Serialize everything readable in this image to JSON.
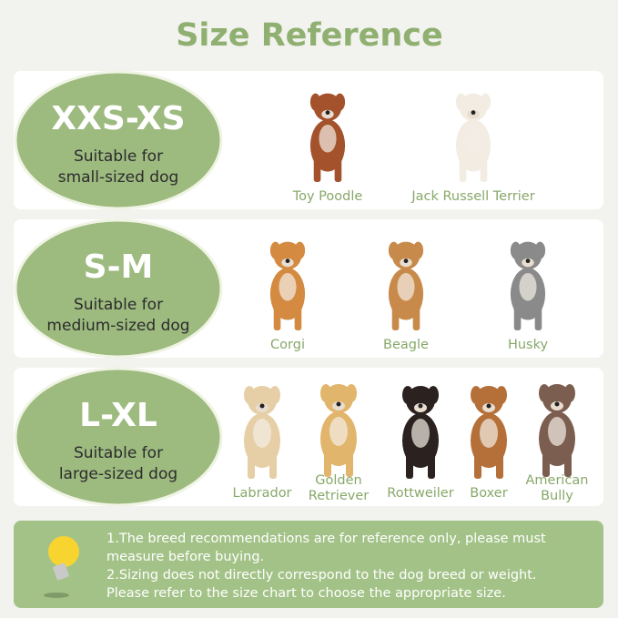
{
  "header": {
    "title": "Size Reference"
  },
  "rows": [
    {
      "size": "XXS-XS",
      "desc": [
        "Suitable for",
        "small-sized dog"
      ],
      "dogs": [
        {
          "label": [
            "Toy Poodle"
          ]
        },
        {
          "label": [
            "Jack Russell Terrier"
          ]
        }
      ]
    },
    {
      "size": "S-M",
      "desc": [
        "Suitable for",
        "medium-sized dog"
      ],
      "dogs": [
        {
          "label": [
            "Corgi"
          ]
        },
        {
          "label": [
            "Beagle"
          ]
        },
        {
          "label": [
            "Husky"
          ]
        }
      ]
    },
    {
      "size": "L-XL",
      "desc": [
        "Suitable for",
        "large-sized dog"
      ],
      "dogs": [
        {
          "label": [
            "Labrador"
          ]
        },
        {
          "label": [
            "Golden",
            "Retriever"
          ]
        },
        {
          "label": [
            "Rottweiler"
          ]
        },
        {
          "label": [
            "Boxer"
          ]
        },
        {
          "label": [
            "American",
            "Bully"
          ]
        }
      ]
    }
  ],
  "notes": [
    "1.The breed recommendations are for reference only, please must",
    "measure before buying.",
    "2.Sizing does not directly correspond to the dog breed or weight.",
    "Please refer to the size chart to choose the appropriate size."
  ]
}
